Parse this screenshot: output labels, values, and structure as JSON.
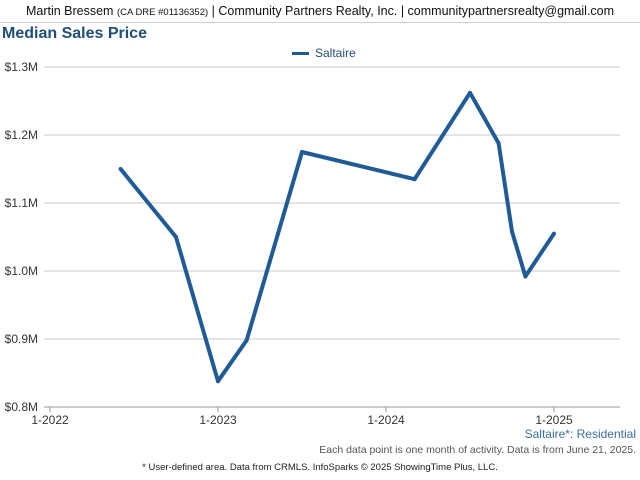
{
  "header": {
    "agent": "Martin Bressem",
    "license": "(CA DRE #01136352)",
    "rest": "| Community Partners Realty, Inc. | communitypartnersrealty@gmail.com"
  },
  "chart_data": {
    "type": "line",
    "title": "Median Sales Price",
    "xlabel": "",
    "ylabel": "",
    "ytick_labels": [
      "$0.8M",
      "$0.9M",
      "$1.0M",
      "$1.1M",
      "$1.2M",
      "$1.3M"
    ],
    "yticks": [
      0.8,
      0.9,
      1.0,
      1.1,
      1.2,
      1.3
    ],
    "ylim": [
      0.8,
      1.3
    ],
    "xtick_labels": [
      "1-2022",
      "1-2023",
      "1-2024",
      "1-2025"
    ],
    "xticks": [
      2022.0,
      2023.0,
      2024.0,
      2025.0
    ],
    "xlim": [
      2022.0,
      2025.4
    ],
    "grid": true,
    "legend_position": "top-center",
    "series": [
      {
        "name": "Saltaire",
        "color": "#1f5b97",
        "x": [
          2022.42,
          2022.75,
          2023.0,
          2023.17,
          2023.5,
          2024.17,
          2024.5,
          2024.67,
          2024.75,
          2024.83,
          2025.0
        ],
        "y": [
          1.15,
          1.05,
          0.838,
          0.898,
          1.175,
          1.135,
          1.262,
          1.188,
          1.058,
          0.992,
          1.055
        ]
      }
    ]
  },
  "notes": {
    "region_label": "Saltaire*: Residential",
    "activity": "Each data point is one month of activity. Data is from June 21, 2025.",
    "source": "* User-defined area. Data from CRMLS. InfoSparks © 2025 ShowingTime Plus, LLC."
  }
}
